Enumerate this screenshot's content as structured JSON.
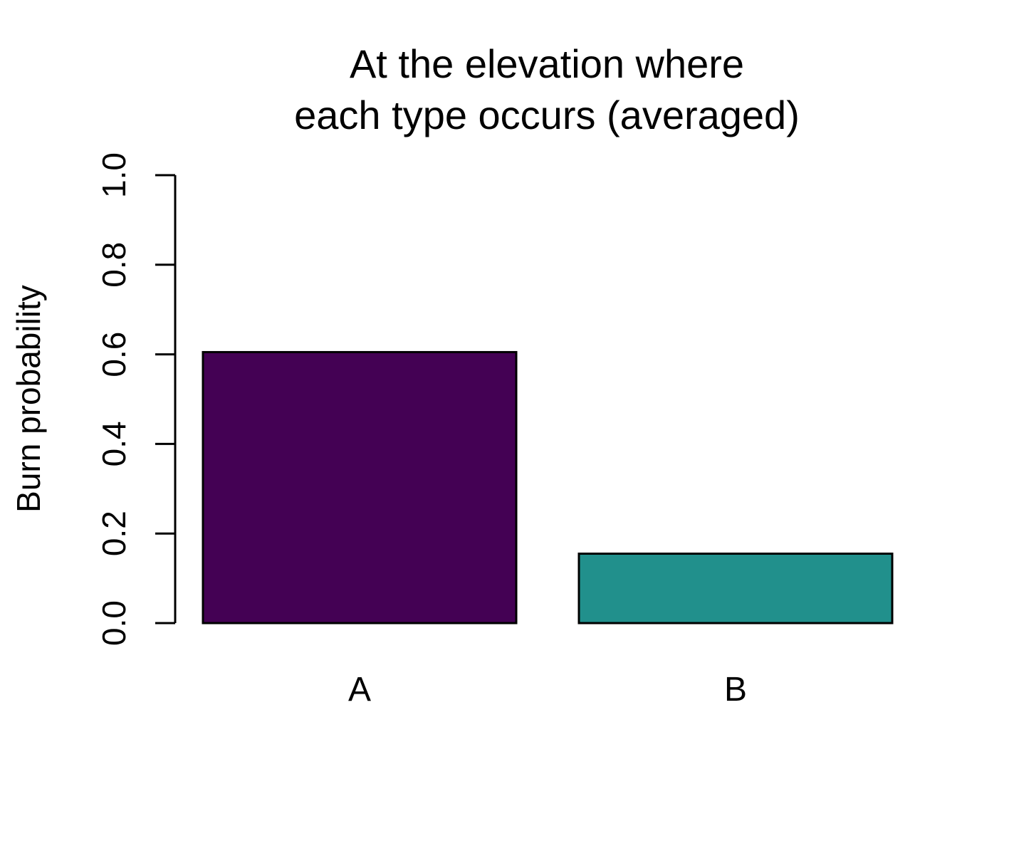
{
  "chart_data": {
    "type": "bar",
    "title_lines": [
      "At the elevation where",
      "each type occurs (averaged)"
    ],
    "xlabel": "",
    "ylabel": "Burn probability",
    "categories": [
      "A",
      "B"
    ],
    "values": [
      0.605,
      0.155
    ],
    "colors": [
      "#440154",
      "#21908C"
    ],
    "ylim": [
      0,
      1
    ],
    "yticks": [
      0.0,
      0.2,
      0.4,
      0.6,
      0.8,
      1.0
    ],
    "ytick_labels": [
      "0.0",
      "0.2",
      "0.4",
      "0.6",
      "0.8",
      "1.0"
    ],
    "grid": false,
    "legend": "none"
  }
}
